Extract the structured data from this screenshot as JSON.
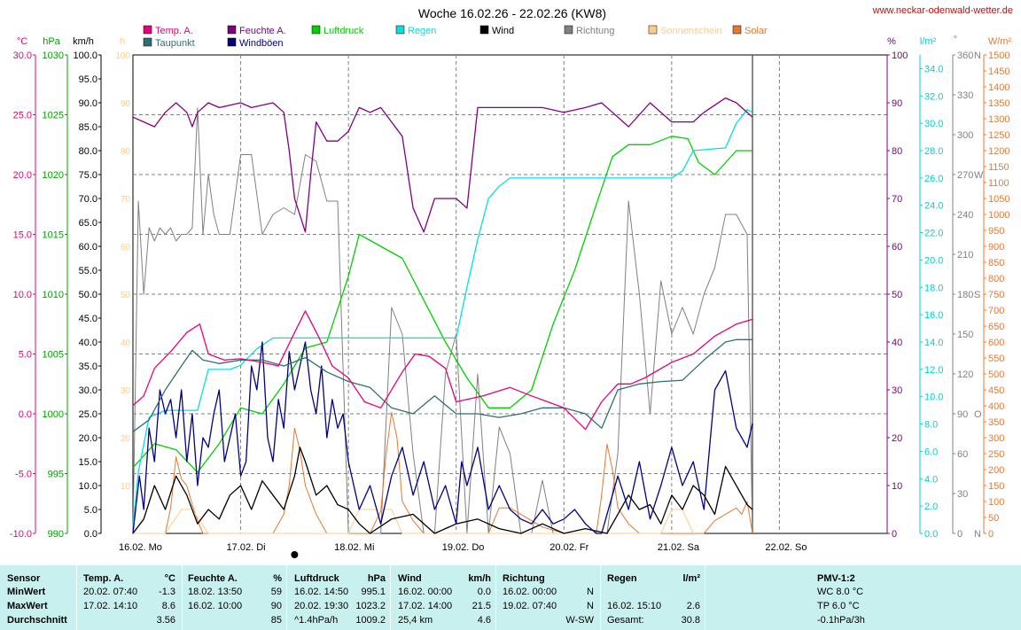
{
  "title": "Woche 16.02.26 - 22.02.26 (KW8)",
  "site": "www.neckar-odenwald-wetter.de",
  "legend": [
    {
      "label": "Temp. A.",
      "color": "#e8007a"
    },
    {
      "label": "Taupunkt",
      "color": "#2f6f6f"
    },
    {
      "label": "Feuchte A.",
      "color": "#800080"
    },
    {
      "label": "Windböen",
      "color": "#000080"
    },
    {
      "label": "Luftdruck",
      "color": "#00d000"
    },
    {
      "label": "Regen",
      "color": "#00e0e0"
    },
    {
      "label": "Wind",
      "color": "#000000"
    },
    {
      "label": "Richtung",
      "color": "#808080"
    },
    {
      "label": "Sonnenschein",
      "color": "#ffcc88"
    },
    {
      "label": "Solar",
      "color": "#e87830"
    }
  ],
  "axis_units": {
    "temp": "°C",
    "pressure": "hPa",
    "wind": "km/h",
    "sun": "h",
    "humidity": "%",
    "rain": "l/m²",
    "direction": "°",
    "solar": "W/m²"
  },
  "axis_ticks": {
    "temp": [
      "30.0",
      "25.0",
      "20.0",
      "15.0",
      "10.0",
      "5.0",
      "0.0",
      "-5.0",
      "-10.0"
    ],
    "pressure": [
      "1030",
      "1025",
      "1020",
      "1015",
      "1010",
      "1005",
      "1000",
      "995",
      "990"
    ],
    "wind": [
      "100.0",
      "95.0",
      "90.0",
      "85.0",
      "80.0",
      "75.0",
      "70.0",
      "65.0",
      "60.0",
      "55.0",
      "50.0",
      "45.0",
      "40.0",
      "35.0",
      "30.0",
      "25.0",
      "20.0",
      "15.0",
      "10.0",
      "5.0",
      "0.0"
    ],
    "sun": [
      "100",
      "90",
      "80",
      "70",
      "60",
      "50",
      "40",
      "30",
      "20",
      "10"
    ],
    "humidity": [
      "100",
      "90",
      "80",
      "70",
      "60",
      "50",
      "40",
      "30",
      "20",
      "10",
      "0"
    ],
    "rain": [
      "34.0",
      "32.0",
      "30.0",
      "28.0",
      "26.0",
      "24.0",
      "22.0",
      "20.0",
      "18.0",
      "16.0",
      "14.0",
      "12.0",
      "10.0",
      "8.0",
      "6.0",
      "4.0",
      "2.0",
      "0.0"
    ],
    "direction_values": [
      "360",
      "330",
      "300",
      "270",
      "240",
      "210",
      "180",
      "150",
      "120",
      "90",
      "60",
      "30",
      "0"
    ],
    "direction_letters": [
      "N",
      "",
      "",
      "W",
      "",
      "",
      "S",
      "",
      "",
      "O",
      "",
      "",
      "N"
    ],
    "solar": [
      "1500",
      "1450",
      "1400",
      "1350",
      "1300",
      "1250",
      "1200",
      "1150",
      "1100",
      "1050",
      "1000",
      "950",
      "900",
      "850",
      "800",
      "750",
      "700",
      "650",
      "600",
      "550",
      "500",
      "450",
      "400",
      "350",
      "300",
      "250",
      "200",
      "150",
      "100",
      "50",
      "0"
    ]
  },
  "day_labels": [
    "16.02. Mo",
    "17.02. Di",
    "18.02. Mi",
    "19.02. Do",
    "20.02. Fr",
    "21.02. Sa",
    "22.02. So"
  ],
  "chart_data": {
    "type": "line",
    "title": "Woche 16.02.26 - 22.02.26 (KW8)",
    "x_unit": "day index from 16.02. 00:00 (0 = Mo, 7 = end of So)",
    "x_range": [
      0,
      7
    ],
    "series": [
      {
        "name": "Temp. A.",
        "unit": "°C",
        "axis": "temp",
        "color": "#e8007a",
        "x": [
          0,
          0.1,
          0.2,
          0.35,
          0.5,
          0.62,
          0.7,
          0.85,
          1.0,
          1.2,
          1.35,
          1.5,
          1.6,
          1.72,
          1.85,
          2.0,
          2.15,
          2.3,
          2.5,
          2.62,
          2.75,
          2.9,
          3.0,
          3.1,
          3.25,
          3.5,
          3.7,
          3.85,
          4.0,
          4.2,
          4.35,
          4.5,
          4.62,
          4.75,
          5.0,
          5.2,
          5.4,
          5.6,
          5.75
        ],
        "y": [
          0.7,
          1.5,
          3.8,
          5.2,
          6.8,
          7.5,
          5.0,
          4.5,
          4.6,
          4.3,
          4.0,
          6.8,
          8.6,
          6.5,
          4.0,
          3.0,
          1.0,
          0.5,
          3.5,
          5.0,
          4.8,
          3.8,
          1.0,
          1.2,
          1.5,
          2.2,
          1.5,
          1.0,
          0.5,
          -1.3,
          1.0,
          2.5,
          2.5,
          3.0,
          4.3,
          5.0,
          6.5,
          7.5,
          7.9
        ]
      },
      {
        "name": "Taupunkt",
        "unit": "°C",
        "axis": "temp",
        "color": "#2f6f6f",
        "x": [
          0,
          0.15,
          0.3,
          0.45,
          0.55,
          0.65,
          0.8,
          1.0,
          1.2,
          1.4,
          1.6,
          1.8,
          2.0,
          2.2,
          2.4,
          2.6,
          2.8,
          3.0,
          3.2,
          3.4,
          3.6,
          3.8,
          4.0,
          4.2,
          4.35,
          4.5,
          4.7,
          4.9,
          5.1,
          5.3,
          5.5,
          5.6,
          5.75
        ],
        "y": [
          -1.5,
          -0.5,
          2.0,
          4.0,
          5.3,
          4.5,
          4.2,
          4.5,
          4.5,
          4.0,
          4.7,
          3.5,
          2.7,
          2.2,
          0.5,
          0.0,
          1.5,
          0.0,
          0.0,
          -0.3,
          0.0,
          0.5,
          0.5,
          0.0,
          -1.2,
          2.0,
          2.5,
          2.7,
          2.8,
          4.5,
          6.0,
          6.2,
          6.2
        ]
      },
      {
        "name": "Feuchte A.",
        "unit": "%",
        "axis": "humidity",
        "color": "#800080",
        "x": [
          0,
          0.1,
          0.2,
          0.3,
          0.4,
          0.5,
          0.55,
          0.6,
          0.7,
          0.8,
          1.0,
          1.1,
          1.3,
          1.4,
          1.45,
          1.5,
          1.6,
          1.65,
          1.7,
          1.8,
          1.9,
          2.0,
          2.1,
          2.2,
          2.3,
          2.5,
          2.6,
          2.7,
          2.8,
          3.0,
          3.1,
          3.2,
          3.4,
          3.6,
          3.8,
          4.0,
          4.2,
          4.35,
          4.45,
          4.6,
          4.8,
          5.0,
          5.2,
          5.3,
          5.5,
          5.6,
          5.75
        ],
        "y": [
          87,
          86,
          85,
          88,
          90,
          88,
          85,
          88,
          90,
          89,
          90,
          89,
          90,
          88,
          80,
          70,
          63,
          75,
          86,
          82,
          82,
          84,
          89,
          88,
          89,
          83,
          68,
          63,
          70,
          70,
          68,
          89,
          89,
          89,
          89,
          88,
          89,
          90,
          88,
          85,
          90,
          86,
          86,
          88,
          91,
          90,
          87
        ]
      },
      {
        "name": "Windböen",
        "unit": "km/h",
        "axis": "wind",
        "color": "#000080",
        "x": [
          0,
          0.06,
          0.1,
          0.15,
          0.2,
          0.25,
          0.3,
          0.35,
          0.4,
          0.45,
          0.5,
          0.55,
          0.6,
          0.65,
          0.7,
          0.75,
          0.8,
          0.85,
          0.9,
          0.95,
          1.0,
          1.05,
          1.1,
          1.15,
          1.2,
          1.25,
          1.3,
          1.35,
          1.4,
          1.45,
          1.5,
          1.55,
          1.6,
          1.65,
          1.7,
          1.75,
          1.8,
          1.85,
          1.9,
          1.95,
          2.0,
          2.1,
          2.2,
          2.3,
          2.4,
          2.5,
          2.6,
          2.7,
          2.8,
          2.9,
          3.0,
          3.05,
          3.1,
          3.2,
          3.3,
          3.4,
          3.5,
          3.6,
          3.7,
          3.8,
          3.9,
          4.0,
          4.1,
          4.2,
          4.3,
          4.35,
          4.4,
          4.5,
          4.6,
          4.7,
          4.8,
          4.9,
          5.0,
          5.1,
          5.2,
          5.3,
          5.4,
          5.5,
          5.6,
          5.7,
          5.75
        ],
        "y": [
          0,
          12,
          5,
          22,
          15,
          30,
          25,
          28,
          20,
          30,
          15,
          25,
          10,
          20,
          18,
          25,
          30,
          15,
          20,
          25,
          12,
          15,
          35,
          30,
          40,
          20,
          15,
          28,
          22,
          38,
          30,
          35,
          40,
          30,
          25,
          35,
          20,
          28,
          22,
          25,
          15,
          5,
          10,
          2,
          12,
          18,
          8,
          15,
          5,
          10,
          2,
          15,
          10,
          18,
          5,
          10,
          5,
          3,
          2,
          5,
          2,
          3,
          5,
          2,
          0,
          0,
          4,
          12,
          5,
          15,
          3,
          10,
          18,
          10,
          15,
          5,
          30,
          34,
          22,
          18,
          23
        ]
      },
      {
        "name": "Luftdruck",
        "unit": "hPa",
        "axis": "pressure",
        "color": "#00d000",
        "x": [
          0,
          0.2,
          0.4,
          0.6,
          0.8,
          1.0,
          1.2,
          1.4,
          1.6,
          1.8,
          2.0,
          2.1,
          2.3,
          2.5,
          2.7,
          2.9,
          3.1,
          3.3,
          3.5,
          3.7,
          3.9,
          4.1,
          4.3,
          4.45,
          4.6,
          4.8,
          5.0,
          5.15,
          5.25,
          5.4,
          5.6,
          5.75
        ],
        "y": [
          995.5,
          997.5,
          997.0,
          995.1,
          997.5,
          1000.5,
          1000.0,
          1002.5,
          1005.5,
          1006.0,
          1011.5,
          1015.0,
          1014.0,
          1013.0,
          1009.5,
          1006.0,
          1003.0,
          1000.5,
          1000.5,
          1002.0,
          1007.5,
          1012.0,
          1017.5,
          1021.5,
          1022.5,
          1022.5,
          1023.2,
          1023.0,
          1021.0,
          1020.0,
          1022.0,
          1022.0
        ]
      },
      {
        "name": "Regen",
        "unit": "l/m²",
        "axis": "rain",
        "color": "#00e0e0",
        "x": [
          0,
          0.05,
          0.15,
          0.3,
          0.6,
          0.7,
          0.9,
          1.0,
          1.15,
          1.3,
          1.5,
          2.0,
          2.5,
          3.0,
          3.1,
          3.2,
          3.3,
          3.4,
          3.5,
          4.0,
          4.5,
          5.0,
          5.1,
          5.2,
          5.5,
          5.6,
          5.7,
          5.75
        ],
        "y": [
          0.5,
          4.5,
          8.5,
          9.0,
          9.0,
          12.0,
          12.0,
          12.3,
          13.5,
          14.3,
          14.3,
          14.3,
          14.3,
          14.3,
          18.0,
          21.5,
          24.5,
          25.4,
          26.0,
          26.0,
          26.0,
          26.0,
          26.5,
          28.0,
          28.2,
          30.0,
          31.0,
          30.8
        ]
      },
      {
        "name": "Wind",
        "unit": "km/h",
        "axis": "wind",
        "color": "#000000",
        "x": [
          0,
          0.1,
          0.2,
          0.3,
          0.4,
          0.5,
          0.6,
          0.7,
          0.8,
          0.9,
          1.0,
          1.1,
          1.2,
          1.3,
          1.4,
          1.5,
          1.55,
          1.6,
          1.7,
          1.8,
          1.9,
          2.0,
          2.1,
          2.2,
          2.4,
          2.6,
          2.8,
          3.0,
          3.2,
          3.4,
          3.6,
          3.8,
          4.0,
          4.2,
          4.4,
          4.5,
          4.6,
          4.7,
          4.8,
          4.9,
          5.0,
          5.1,
          5.2,
          5.3,
          5.4,
          5.5,
          5.6,
          5.7,
          5.75
        ],
        "y": [
          0,
          3,
          10,
          5,
          12,
          8,
          2,
          5,
          3,
          8,
          10,
          5,
          11,
          8,
          5,
          12,
          18,
          15,
          8,
          10,
          6,
          5,
          2,
          0,
          3,
          4,
          0,
          2,
          3,
          1,
          0,
          2,
          0,
          1,
          0,
          4,
          8,
          5,
          6,
          2,
          8,
          5,
          10,
          8,
          4,
          14,
          10,
          6,
          5
        ]
      },
      {
        "name": "Richtung",
        "unit": "°",
        "axis": "direction",
        "color": "#808080",
        "x": [
          0,
          0.05,
          0.1,
          0.15,
          0.2,
          0.25,
          0.3,
          0.35,
          0.4,
          0.45,
          0.5,
          0.55,
          0.6,
          0.65,
          0.7,
          0.75,
          0.8,
          0.85,
          0.9,
          1.0,
          1.1,
          1.2,
          1.3,
          1.4,
          1.5,
          1.6,
          1.7,
          1.8,
          1.9,
          2.0,
          2.1,
          2.2,
          2.3,
          2.4,
          2.5,
          2.6,
          2.7,
          2.8,
          2.9,
          3.0,
          3.1,
          3.2,
          3.3,
          3.4,
          3.5,
          3.6,
          3.7,
          3.8,
          3.9,
          4.0,
          4.1,
          4.2,
          4.3,
          4.4,
          4.5,
          4.6,
          4.7,
          4.8,
          4.9,
          5.0,
          5.1,
          5.2,
          5.3,
          5.4,
          5.5,
          5.6,
          5.7,
          5.75
        ],
        "y": [
          0,
          250,
          180,
          230,
          220,
          230,
          225,
          230,
          220,
          225,
          225,
          230,
          320,
          225,
          270,
          240,
          225,
          225,
          225,
          285,
          285,
          225,
          240,
          245,
          240,
          285,
          280,
          250,
          250,
          0,
          0,
          0,
          0,
          170,
          150,
          60,
          0,
          0,
          120,
          150,
          0,
          120,
          0,
          80,
          60,
          0,
          0,
          40,
          0,
          0,
          0,
          0,
          0,
          0,
          60,
          250,
          180,
          90,
          190,
          150,
          170,
          150,
          180,
          200,
          240,
          240,
          225,
          0
        ]
      },
      {
        "name": "Sonnenschein",
        "unit": "h",
        "axis": "sun",
        "color": "#ffcc88",
        "x": [
          0,
          0.3,
          0.45,
          0.55,
          0.7,
          2.0,
          2.1,
          2.2,
          2.3,
          2.4,
          2.5,
          4.9,
          5.0,
          5.1,
          5.2
        ],
        "y": [
          0,
          0,
          0.5,
          0.5,
          0,
          0,
          0.5,
          0.5,
          0.5,
          0.5,
          0,
          0,
          0.5,
          0.5,
          0
        ]
      },
      {
        "name": "Solar",
        "unit": "W/m²",
        "axis": "solar",
        "color": "#e87830",
        "x": [
          0,
          0.3,
          0.35,
          0.4,
          0.45,
          0.5,
          0.55,
          0.6,
          0.65,
          0.7,
          1.0,
          1.3,
          1.4,
          1.45,
          1.5,
          1.55,
          1.6,
          1.7,
          1.8,
          2.0,
          2.2,
          2.3,
          2.35,
          2.4,
          2.45,
          2.5,
          2.6,
          2.7,
          3.0,
          3.3,
          3.4,
          3.5,
          3.6,
          3.7,
          3.8,
          4.0,
          4.3,
          4.35,
          4.4,
          4.45,
          4.5,
          4.6,
          4.7,
          5.0,
          5.3,
          5.4,
          5.5,
          5.6,
          5.65,
          5.7,
          5.75
        ],
        "y": [
          0,
          0,
          80,
          240,
          170,
          150,
          90,
          40,
          0,
          0,
          0,
          0,
          60,
          150,
          330,
          260,
          150,
          60,
          0,
          0,
          0,
          70,
          250,
          380,
          300,
          100,
          40,
          0,
          0,
          0,
          80,
          80,
          60,
          40,
          20,
          0,
          0,
          120,
          280,
          200,
          80,
          30,
          0,
          0,
          0,
          40,
          60,
          80,
          60,
          100,
          0
        ]
      }
    ]
  },
  "stats": {
    "headers": {
      "sensor": "Sensor",
      "temp": "Temp. A.",
      "temp_unit": "°C",
      "hum": "Feuchte A.",
      "hum_unit": "%",
      "press": "Luftdruck",
      "press_unit": "hPa",
      "wind": "Wind",
      "wind_unit": "km/h",
      "dir": "Richtung",
      "rain": "Regen",
      "rain_unit": "l/m²",
      "pmv": "PMV-1:2"
    },
    "row_labels": [
      "MinWert",
      "MaxWert",
      "Durchschnitt"
    ],
    "temp": [
      {
        "t": "20.02.  07:40",
        "v": "-1.3"
      },
      {
        "t": "17.02.  14:10",
        "v": "8.6"
      },
      {
        "t": "",
        "v": "3.56"
      }
    ],
    "hum": [
      {
        "t": "18.02.  13:50",
        "v": "59"
      },
      {
        "t": "16.02.  10:00",
        "v": "90"
      },
      {
        "t": "",
        "v": "85"
      }
    ],
    "press": [
      {
        "t": "16.02.  14:50",
        "v": "995.1"
      },
      {
        "t": "20.02.  19:30",
        "v": "1023.2"
      },
      {
        "t": "^1.4hPa/h",
        "v": "1009.2"
      }
    ],
    "wind": [
      {
        "t": "16.02.  00:00",
        "v": "0.0"
      },
      {
        "t": "17.02.  14:00",
        "v": "21.5"
      },
      {
        "t": "25,4 km",
        "v": "4.6"
      }
    ],
    "dir": [
      {
        "t": "16.02.  00:00",
        "v": "N"
      },
      {
        "t": "19.02.  07:40",
        "v": "N"
      },
      {
        "t": "",
        "v": "W-SW"
      }
    ],
    "rain": [
      {
        "t": "",
        "v": ""
      },
      {
        "t": "16.02.  15:10",
        "v": "2.6"
      },
      {
        "t": "Gesamt:",
        "v": "30.8"
      }
    ],
    "pmv": [
      "WC 8.0 °C",
      "TP 6.0 °C",
      "-0.1hPa/3h"
    ]
  }
}
